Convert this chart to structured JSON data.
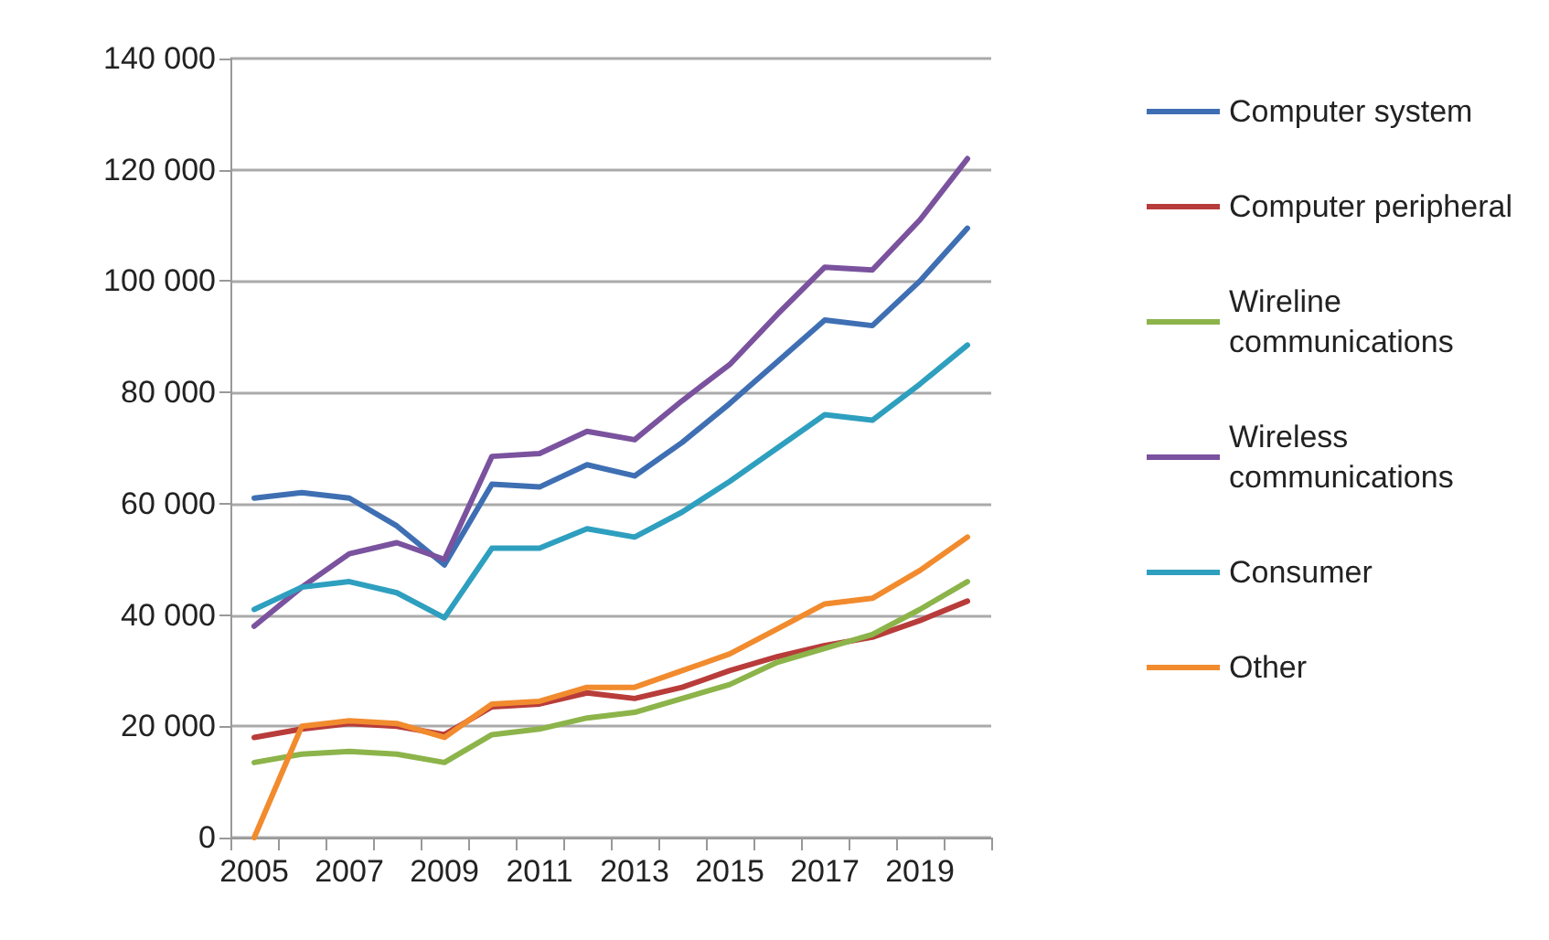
{
  "chart_data": {
    "type": "line",
    "categories": [
      "2005",
      null,
      "2007",
      null,
      "2009",
      null,
      "2011",
      null,
      "2013",
      null,
      "2015",
      null,
      "2017",
      null,
      "2019",
      null
    ],
    "series": [
      {
        "name": "Computer system",
        "color": "#3f6fb3",
        "values": [
          61000,
          62000,
          61000,
          56000,
          49000,
          63500,
          63000,
          67000,
          65000,
          71000,
          78000,
          85500,
          93000,
          92000,
          100000,
          109500
        ]
      },
      {
        "name": "Computer peripheral",
        "color": "#b83c3a",
        "values": [
          18000,
          19500,
          20500,
          20000,
          18500,
          23500,
          24000,
          26000,
          25000,
          27000,
          30000,
          32500,
          34500,
          36000,
          39000,
          42500
        ]
      },
      {
        "name": "Wireline communications",
        "color": "#8cb44a",
        "values": [
          13500,
          15000,
          15500,
          15000,
          13500,
          18500,
          19500,
          21500,
          22500,
          25000,
          27500,
          31500,
          34000,
          36500,
          41000,
          46000
        ]
      },
      {
        "name": "Wireless communications",
        "color": "#7a529e",
        "values": [
          38000,
          45000,
          51000,
          53000,
          50000,
          68500,
          69000,
          73000,
          71500,
          78500,
          85000,
          94000,
          102500,
          102000,
          111000,
          122000
        ]
      },
      {
        "name": "Consumer",
        "color": "#2e9fbf",
        "values": [
          41000,
          45000,
          46000,
          44000,
          39500,
          52000,
          52000,
          55500,
          54000,
          58500,
          64000,
          70000,
          76000,
          75000,
          81500,
          88500
        ]
      },
      {
        "name": "Other",
        "color": "#f18b2e",
        "values": [
          0,
          20000,
          21000,
          20500,
          18000,
          24000,
          24500,
          27000,
          27000,
          30000,
          33000,
          37500,
          42000,
          43000,
          48000,
          54000
        ]
      }
    ],
    "ylim": [
      0,
      140000
    ],
    "yticks": [
      {
        "value": 0,
        "label": "0"
      },
      {
        "value": 20000,
        "label": "20 000"
      },
      {
        "value": 40000,
        "label": "40 000"
      },
      {
        "value": 60000,
        "label": "60 000"
      },
      {
        "value": 80000,
        "label": "80 000"
      },
      {
        "value": 100000,
        "label": "100 000"
      },
      {
        "value": 120000,
        "label": "120 000"
      },
      {
        "value": 140000,
        "label": "140 000"
      }
    ],
    "grid": "y",
    "legend": "right",
    "marker": "none",
    "line_style": "solid"
  }
}
